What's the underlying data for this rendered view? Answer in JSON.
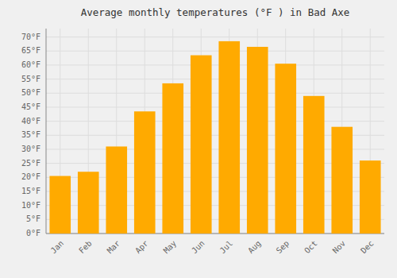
{
  "chart_data": {
    "type": "bar",
    "title": "Average monthly temperatures (°F ) in Bad Axe",
    "categories": [
      "Jan",
      "Feb",
      "Mar",
      "Apr",
      "May",
      "Jun",
      "Jul",
      "Aug",
      "Sep",
      "Oct",
      "Nov",
      "Dec"
    ],
    "values": [
      20.5,
      22.0,
      31.0,
      43.5,
      53.5,
      63.5,
      68.5,
      66.5,
      60.5,
      49.0,
      38.0,
      26.0
    ],
    "color": "#FFAA00",
    "ylim": [
      0,
      73
    ],
    "yticks": [
      {
        "value": 0,
        "label": "0°F"
      },
      {
        "value": 5,
        "label": "5°F"
      },
      {
        "value": 10,
        "label": "10°F"
      },
      {
        "value": 15,
        "label": "15°F"
      },
      {
        "value": 20,
        "label": "20°F"
      },
      {
        "value": 25,
        "label": "25°F"
      },
      {
        "value": 30,
        "label": "30°F"
      },
      {
        "value": 35,
        "label": "35°F"
      },
      {
        "value": 40,
        "label": "40°F"
      },
      {
        "value": 45,
        "label": "45°F"
      },
      {
        "value": 50,
        "label": "50°F"
      },
      {
        "value": 55,
        "label": "55°F"
      },
      {
        "value": 60,
        "label": "60°F"
      },
      {
        "value": 65,
        "label": "65°F"
      },
      {
        "value": 70,
        "label": "70°F"
      }
    ],
    "grid": true
  }
}
